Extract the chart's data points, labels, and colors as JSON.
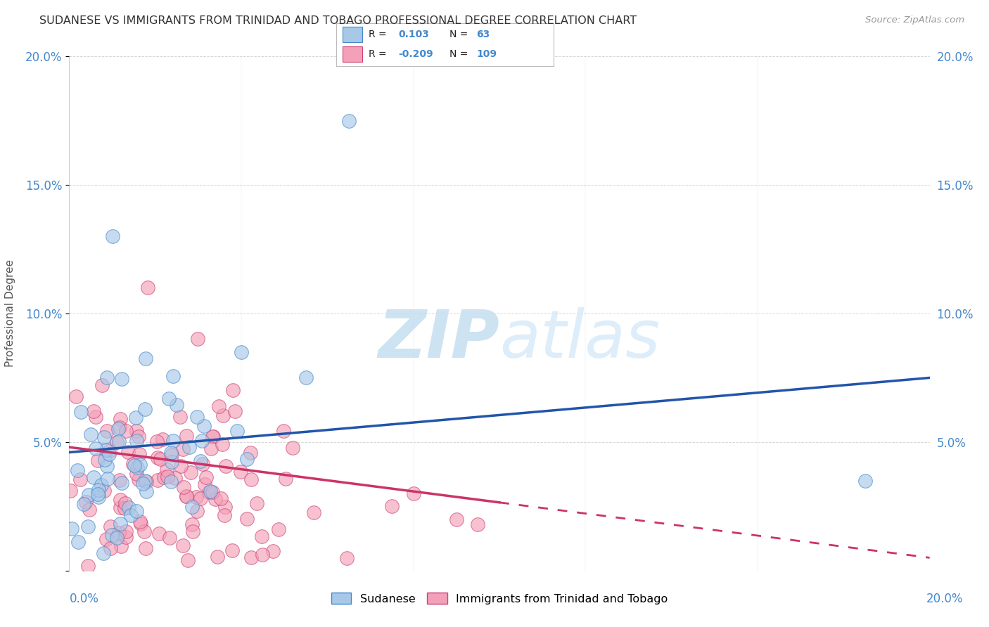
{
  "title": "SUDANESE VS IMMIGRANTS FROM TRINIDAD AND TOBAGO PROFESSIONAL DEGREE CORRELATION CHART",
  "source": "Source: ZipAtlas.com",
  "ylabel": "Professional Degree",
  "xlim": [
    0.0,
    0.2
  ],
  "ylim": [
    0.0,
    0.2
  ],
  "r_sudanese": 0.103,
  "n_sudanese": 63,
  "r_trinidad": -0.209,
  "n_trinidad": 109,
  "color_sudanese_fill": "#a8c8e8",
  "color_sudanese_edge": "#4488cc",
  "color_trinidad_fill": "#f4a0b8",
  "color_trinidad_edge": "#cc4477",
  "color_sudanese_line": "#2255aa",
  "color_trinidad_line": "#cc3366",
  "background": "#ffffff",
  "grid_color": "#cccccc",
  "watermark_zip": "ZIP",
  "watermark_atlas": "atlas",
  "legend_label_1": "Sudanese",
  "legend_label_2": "Immigrants from Trinidad and Tobago",
  "axis_color": "#4488cc",
  "title_color": "#333333",
  "source_color": "#999999"
}
